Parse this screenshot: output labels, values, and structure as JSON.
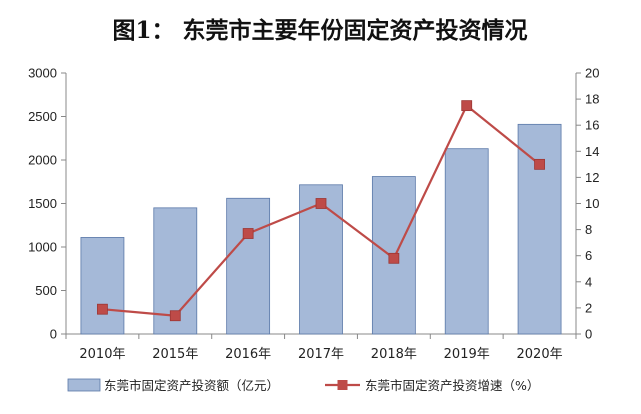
{
  "chart_data": {
    "type": "bar",
    "title": "图1： 东莞市主要年份固定资产投资情况",
    "categories": [
      "2010年",
      "2015年",
      "2016年",
      "2017年",
      "2018年",
      "2019年",
      "2020年"
    ],
    "series": [
      {
        "name": "东莞市固定资产投资额（亿元）",
        "type": "bar",
        "axis": "left",
        "color": "#a5b9d8",
        "values": [
          1110,
          1450,
          1560,
          1715,
          1810,
          2130,
          2410
        ]
      },
      {
        "name": "东莞市固定资产投资增速（%）",
        "type": "line",
        "axis": "right",
        "color": "#be4b48",
        "values": [
          1.9,
          1.4,
          7.7,
          10.0,
          5.8,
          17.5,
          13.0
        ]
      }
    ],
    "y_left": {
      "min": 0,
      "max": 3000,
      "step": 500,
      "ticks": [
        "0",
        "500",
        "1000",
        "1500",
        "2000",
        "2500",
        "3000"
      ]
    },
    "y_right": {
      "min": 0,
      "max": 20,
      "step": 2,
      "ticks": [
        "0",
        "2",
        "4",
        "6",
        "8",
        "10",
        "12",
        "14",
        "16",
        "18",
        "20"
      ]
    },
    "grid": false,
    "legend_position": "bottom"
  }
}
